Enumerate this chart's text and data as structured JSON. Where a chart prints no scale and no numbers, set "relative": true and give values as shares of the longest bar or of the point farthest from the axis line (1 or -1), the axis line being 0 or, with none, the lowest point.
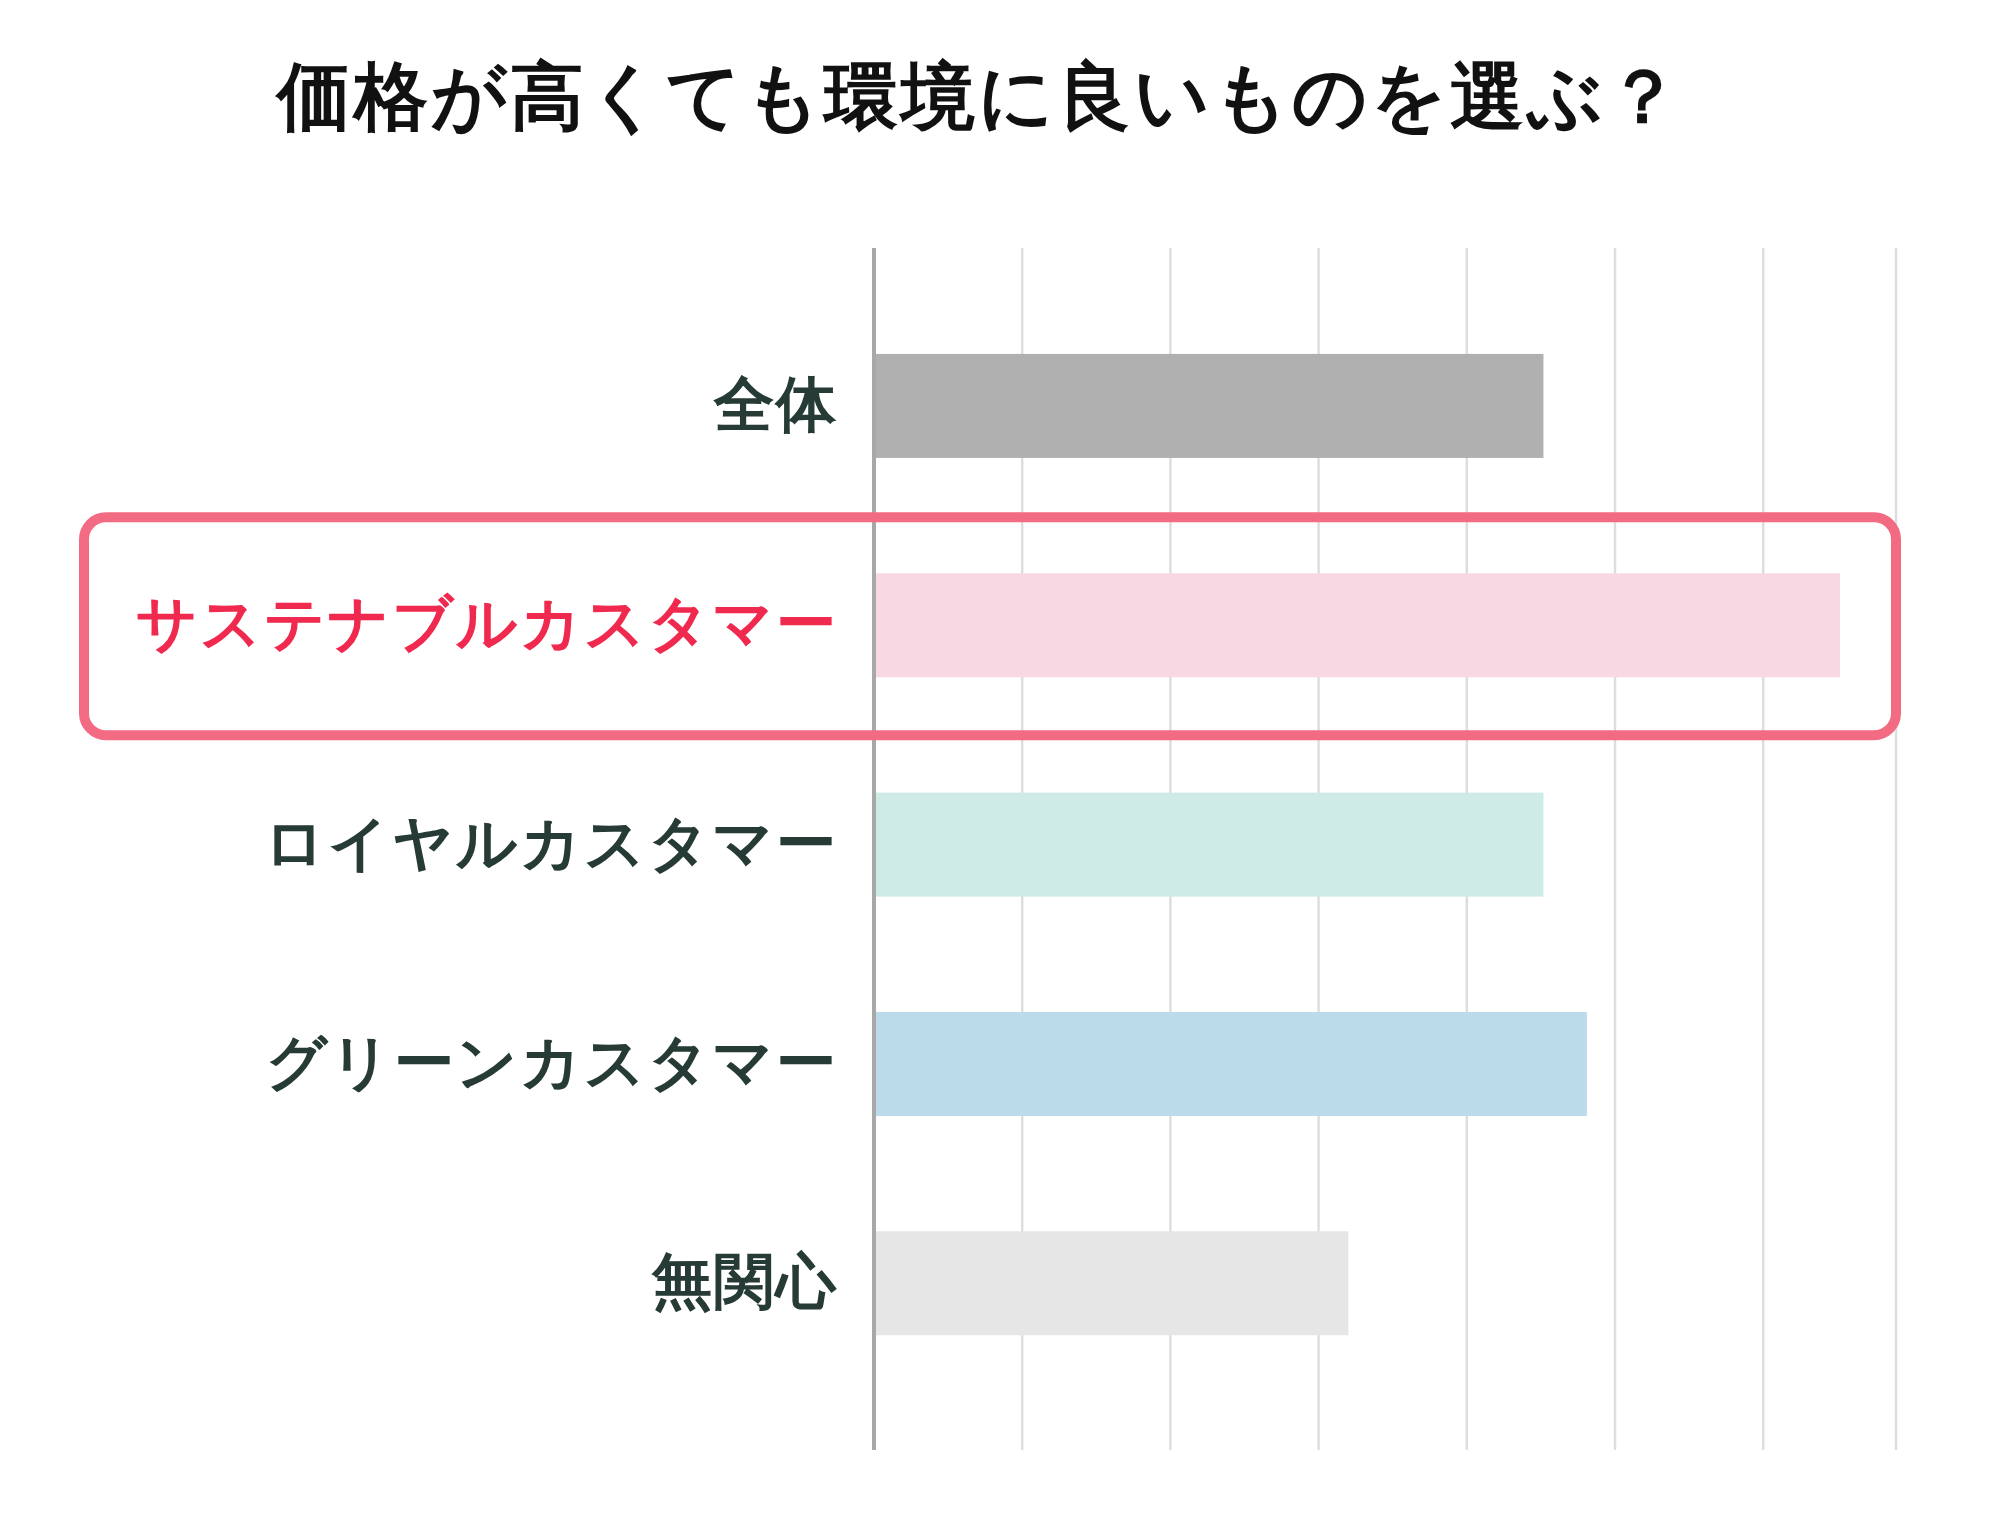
{
  "chart_data": {
    "type": "bar",
    "orientation": "horizontal",
    "relative": true,
    "title": "価格が高くても環境に良いものを選ぶ？",
    "categories": [
      "全体",
      "サステナブルカスタマー",
      "ロイヤルカスタマー",
      "グリーンカスタマー",
      "無関心"
    ],
    "values": [
      0.693,
      1,
      0.693,
      0.738,
      0.491
    ],
    "colors": [
      "#b0b0b0",
      "#f8d9e3",
      "#cfebe5",
      "#bcdbea",
      "#e6e6e6"
    ],
    "grid": "x"
  }
}
